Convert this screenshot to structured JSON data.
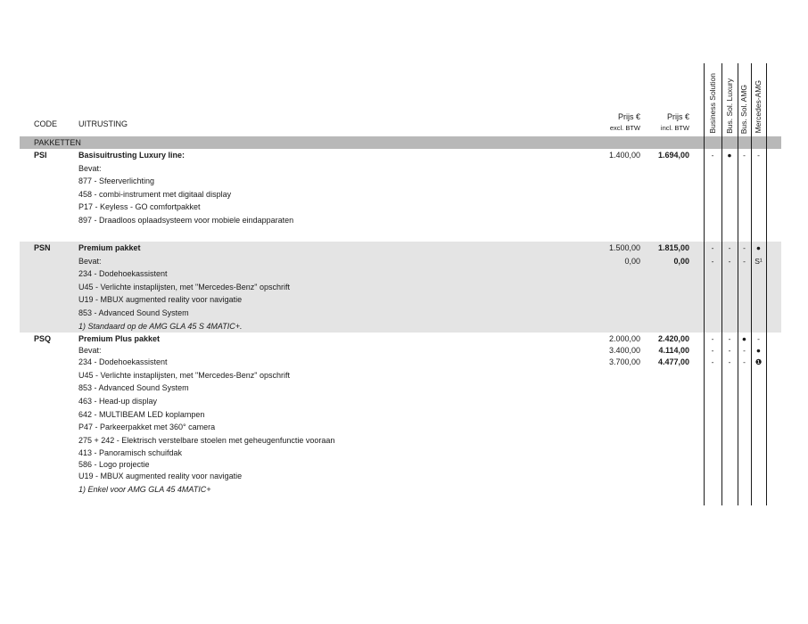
{
  "colors": {
    "band_background": "#b8b8b8",
    "shaded_section_background": "#e4e4e4",
    "text": "#1a1a1a",
    "rule": "#1a1a1a"
  },
  "table": {
    "headers": {
      "code": "CODE",
      "uitrusting": "UITRUSTING",
      "price_excl_line1": "Prijs €",
      "price_excl_line2": "excl. BTW",
      "price_incl_line1": "Prijs €",
      "price_incl_line2": "incl. BTW"
    },
    "availability_columns": [
      "Business Solution",
      "Bus. Sol. Luxury",
      "Bus. Sol. AMG",
      "Mercedes-AMG"
    ],
    "section_band": "PAKKETTEN",
    "sections": [
      {
        "code": "PSI",
        "shaded": false,
        "gap_before": false,
        "rows": [
          {
            "text": "Basisuitrusting Luxury line:",
            "style": "bold",
            "price_excl": "1.400,00",
            "price_incl": "1.694,00",
            "marks": [
              "-",
              "●",
              "-",
              "-"
            ]
          },
          {
            "text": "Bevat:",
            "style": "normal"
          },
          {
            "text": "877 - Sfeerverlichting",
            "style": "normal"
          },
          {
            "text": "458 - combi-instrument met digitaal display",
            "style": "normal"
          },
          {
            "text": "P17 - Keyless - GO comfortpakket",
            "style": "normal"
          },
          {
            "text": "897 - Draadloos oplaadsysteem voor mobiele eindapparaten",
            "style": "normal"
          }
        ]
      },
      {
        "code": "PSN",
        "shaded": true,
        "gap_before": true,
        "rows": [
          {
            "text": "Premium pakket",
            "style": "bold",
            "price_excl": "1.500,00",
            "price_incl": "1.815,00",
            "marks": [
              "-",
              "-",
              "-",
              "●"
            ]
          },
          {
            "text": "Bevat:",
            "style": "normal",
            "price_excl": "0,00",
            "price_incl": "0,00",
            "marks": [
              "-",
              "-",
              "-",
              "S¹"
            ]
          },
          {
            "text": "234 - Dodehoekassistent",
            "style": "normal"
          },
          {
            "text": "U45 - Verlichte instaplijsten, met \"Mercedes-Benz\" opschrift",
            "style": "normal"
          },
          {
            "text": "U19 - MBUX augmented reality voor navigatie",
            "style": "normal"
          },
          {
            "text": "853 - Advanced Sound System",
            "style": "normal"
          },
          {
            "text": "1) Standaard op de AMG GLA 45 S 4MATIC+.",
            "style": "italic"
          }
        ]
      },
      {
        "code": "PSQ",
        "shaded": false,
        "gap_before": false,
        "rows": [
          {
            "text": "Premium Plus pakket",
            "style": "bold",
            "price_excl": "2.000,00",
            "price_incl": "2.420,00",
            "marks": [
              "-",
              "-",
              "●",
              "-"
            ]
          },
          {
            "text": "Bevat:",
            "style": "normal",
            "price_excl": "3.400,00",
            "price_incl": "4.114,00",
            "marks": [
              "-",
              "-",
              "-",
              "●"
            ],
            "tight": true
          },
          {
            "text": "234 - Dodehoekassistent",
            "style": "normal",
            "price_excl": "3.700,00",
            "price_incl": "4.477,00",
            "marks": [
              "-",
              "-",
              "-",
              "❶"
            ]
          },
          {
            "text": "U45 - Verlichte instaplijsten, met \"Mercedes-Benz\" opschrift",
            "style": "normal"
          },
          {
            "text": "853 - Advanced Sound System",
            "style": "normal"
          },
          {
            "text": "463 - Head-up display",
            "style": "normal"
          },
          {
            "text": "642 - MULTIBEAM LED koplampen",
            "style": "normal"
          },
          {
            "text": "P47 - Parkeerpakket met 360° camera",
            "style": "normal"
          },
          {
            "text": "275 + 242 - Elektrisch verstelbare stoelen met geheugenfunctie vooraan",
            "style": "normal"
          },
          {
            "text": "413 - Panoramisch schuifdak",
            "style": "normal"
          },
          {
            "text": "586 - Logo projectie",
            "style": "normal",
            "tight": true
          },
          {
            "text": "U19 - MBUX augmented reality voor navigatie",
            "style": "normal"
          },
          {
            "text": "1) Enkel voor AMG GLA 45 4MATIC+",
            "style": "italic"
          }
        ]
      }
    ]
  }
}
